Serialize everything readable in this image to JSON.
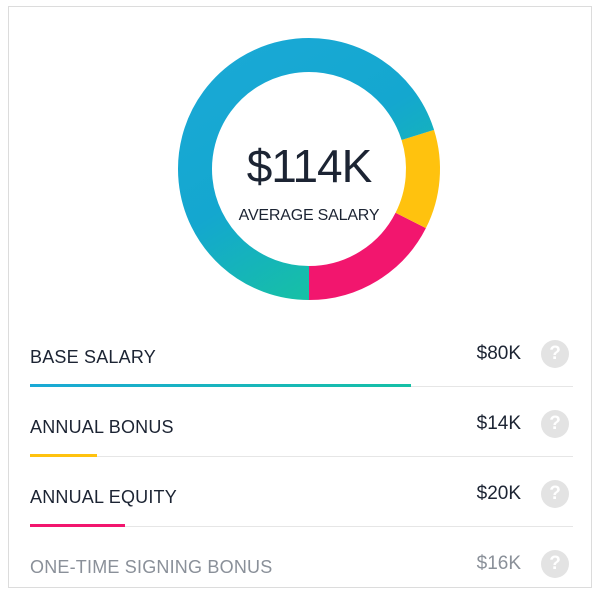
{
  "summary": {
    "amount": "$114K",
    "label": "AVERAGE SALARY"
  },
  "chart_data": {
    "type": "pie",
    "total": 114,
    "unit": "$K",
    "categories": [
      "BASE SALARY",
      "ANNUAL BONUS",
      "ANNUAL EQUITY",
      "ONE-TIME SIGNING BONUS"
    ],
    "values": [
      80,
      14,
      20,
      16
    ],
    "display_values": [
      "$80K",
      "$14K",
      "$20K",
      "$16K"
    ],
    "colors": [
      "#1aa9d6",
      "#ffc20e",
      "#f2166e",
      "#a0a6ad"
    ],
    "gradient_end": "#16c0a6",
    "donut_order": [
      "ANNUAL EQUITY",
      "ANNUAL BONUS",
      "BASE SALARY"
    ],
    "legend": "none"
  },
  "help_icon": "question-mark-icon",
  "help_glyph": "?"
}
